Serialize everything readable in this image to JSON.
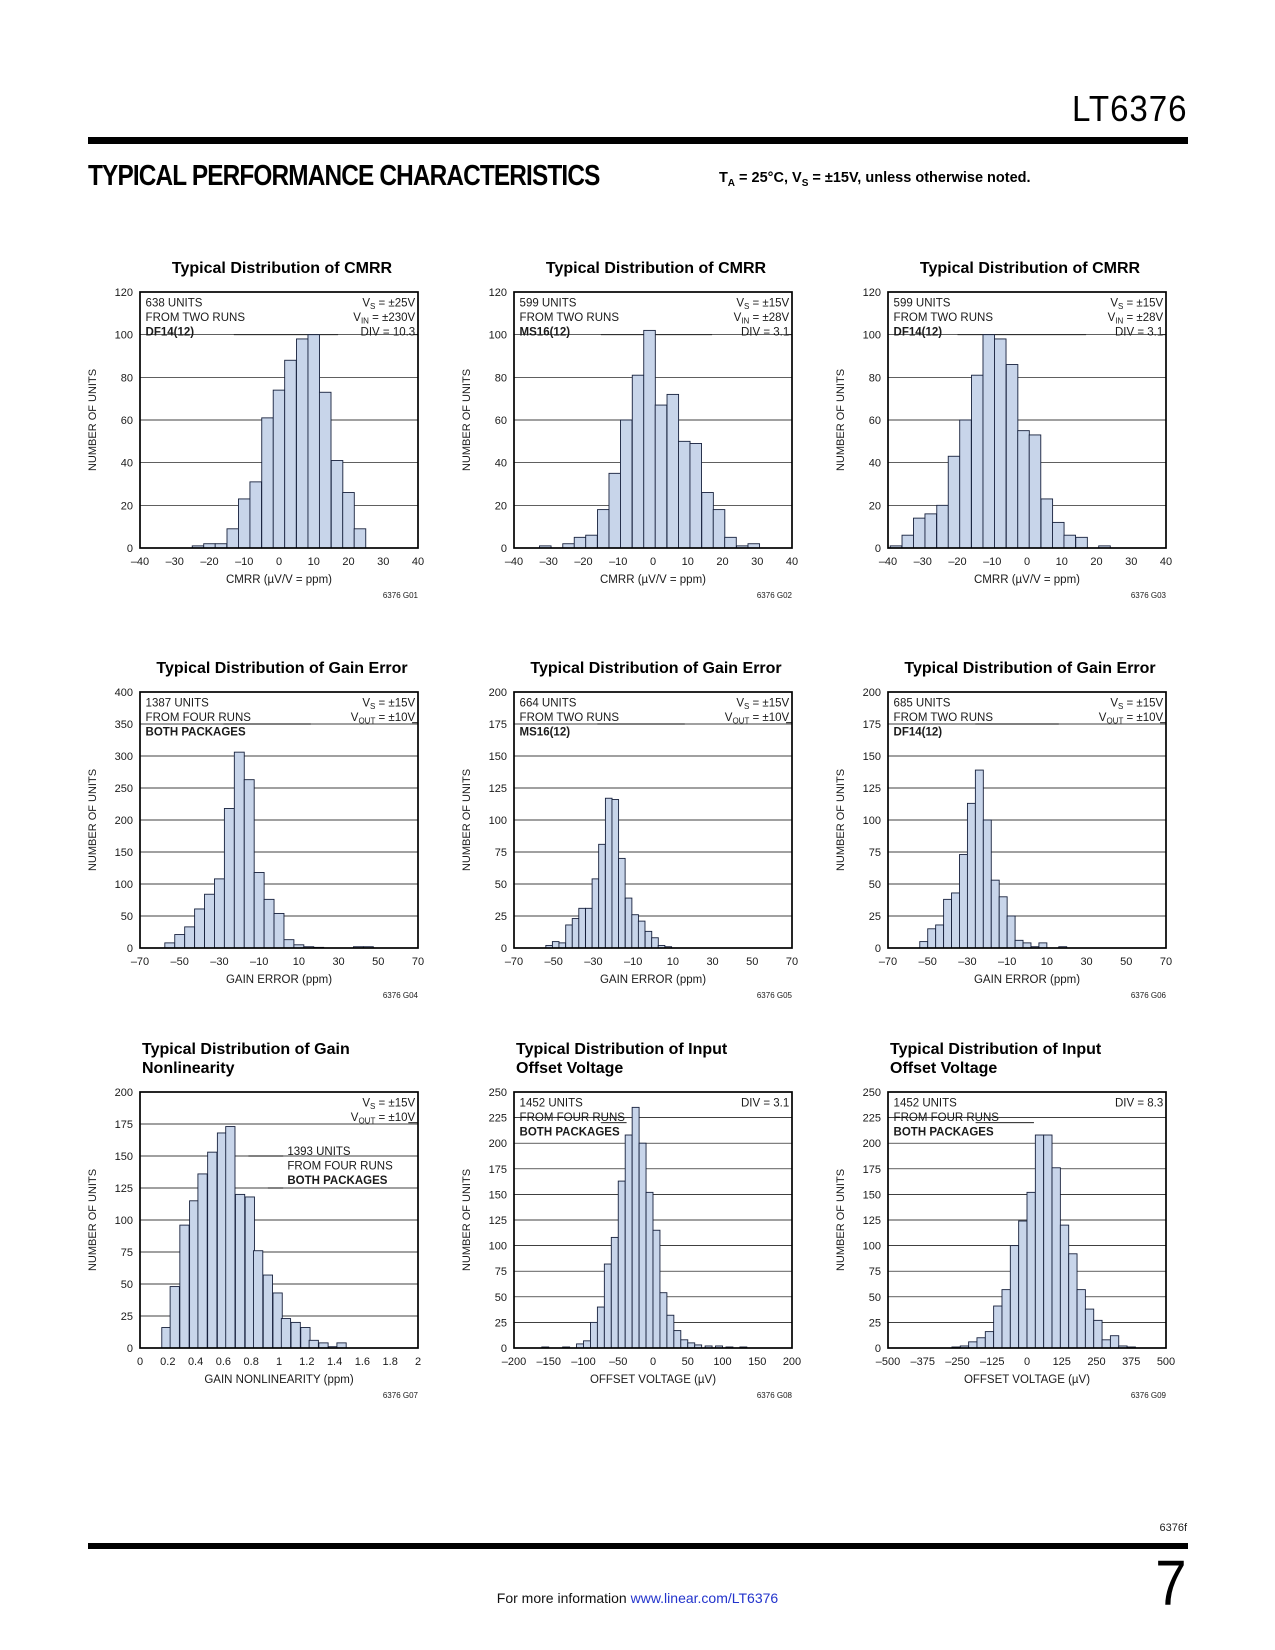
{
  "page": {
    "part_number": "LT6376",
    "section_title": "TYPICAL PERFORMANCE CHARACTERISTICS",
    "conditions_note": "T~A~ = 25°C, V~S~ = ±15V, unless otherwise noted.",
    "footer": {
      "doc_code": "6376f",
      "info_prefix": "For more information ",
      "info_link": "www.linear.com/LT6376",
      "page_number": "7"
    }
  },
  "colors": {
    "bar_fill": "#c8d5ea",
    "bar_stroke": "#17213d",
    "grid": "#000000",
    "frame": "#000000",
    "link": "#2233cc",
    "code_text": "#555555"
  },
  "chart_data": [
    {
      "id": "G01",
      "type": "bar",
      "code": "6376 G01",
      "title": "Typical Distribution of CMRR",
      "title_lines": [
        "Typical Distribution of CMRR"
      ],
      "title_align": "center",
      "xlabel": "CMRR (µV/V = ppm)",
      "ylabel": "NUMBER OF UNITS",
      "xlim": [
        -40,
        40
      ],
      "xticks": [
        -40,
        -30,
        -20,
        -10,
        0,
        10,
        20,
        30,
        40
      ],
      "ylim": [
        0,
        120
      ],
      "ystep": 20,
      "bin_width": 3.33,
      "bars": [
        [
          -23.3,
          1
        ],
        [
          -20,
          2
        ],
        [
          -16.7,
          2
        ],
        [
          -13.3,
          9
        ],
        [
          -10,
          23
        ],
        [
          -6.7,
          31
        ],
        [
          -3.3,
          61
        ],
        [
          0,
          74
        ],
        [
          3.3,
          88
        ],
        [
          6.7,
          98
        ],
        [
          10,
          100
        ],
        [
          13.3,
          73
        ],
        [
          16.7,
          41
        ],
        [
          20,
          26
        ],
        [
          23.3,
          9
        ]
      ],
      "annotations": [
        {
          "anchor": "start",
          "fx": 0.02,
          "fy": 0.01,
          "lines": [
            "638 UNITS",
            "FROM TWO RUNS",
            "**DF14(12)**"
          ]
        },
        {
          "anchor": "end",
          "fx": 0.99,
          "fy": 0.01,
          "lines": [
            "V~S~ = ±25V",
            "V~IN~ = ±230V",
            "DIV = 10.3"
          ]
        }
      ],
      "leaders": [
        {
          "y": 100,
          "x1": -13,
          "x2": 17
        },
        {
          "y": 100,
          "x1": 38.6,
          "x2": 40
        }
      ]
    },
    {
      "id": "G02",
      "type": "bar",
      "code": "6376 G02",
      "title": "Typical Distribution of CMRR",
      "title_lines": [
        "Typical Distribution of CMRR"
      ],
      "title_align": "center",
      "xlabel": "CMRR (µV/V = ppm)",
      "ylabel": "NUMBER OF UNITS",
      "xlim": [
        -40,
        40
      ],
      "xticks": [
        -40,
        -30,
        -20,
        -10,
        0,
        10,
        20,
        30,
        40
      ],
      "ylim": [
        0,
        120
      ],
      "ystep": 20,
      "bin_width": 3.33,
      "bars": [
        [
          -31,
          1
        ],
        [
          -24.3,
          2
        ],
        [
          -21,
          5
        ],
        [
          -17.7,
          6
        ],
        [
          -14.3,
          18
        ],
        [
          -11,
          35
        ],
        [
          -7.7,
          60
        ],
        [
          -4.3,
          81
        ],
        [
          -1,
          102
        ],
        [
          2.3,
          67
        ],
        [
          5.7,
          72
        ],
        [
          9,
          50
        ],
        [
          12.3,
          49
        ],
        [
          15.7,
          26
        ],
        [
          19,
          18
        ],
        [
          22.3,
          5
        ],
        [
          25.7,
          1
        ],
        [
          29,
          2
        ]
      ],
      "annotations": [
        {
          "anchor": "start",
          "fx": 0.02,
          "fy": 0.01,
          "lines": [
            "599 UNITS",
            "FROM TWO RUNS",
            "**MS16(12)**"
          ]
        },
        {
          "anchor": "end",
          "fx": 0.99,
          "fy": 0.01,
          "lines": [
            "V~S~ = ±15V",
            "V~IN~ = ±28V",
            "DIV = 3.1"
          ]
        }
      ],
      "leaders": [
        {
          "y": 100,
          "x1": -15,
          "x2": 17
        },
        {
          "y": 100,
          "x1": 38.6,
          "x2": 40
        }
      ]
    },
    {
      "id": "G03",
      "type": "bar",
      "code": "6376 G03",
      "title": "Typical Distribution of CMRR",
      "title_lines": [
        "Typical Distribution of CMRR"
      ],
      "title_align": "center",
      "xlabel": "CMRR (µV/V = ppm)",
      "ylabel": "NUMBER OF UNITS",
      "xlim": [
        -40,
        40
      ],
      "xticks": [
        -40,
        -30,
        -20,
        -10,
        0,
        10,
        20,
        30,
        40
      ],
      "ylim": [
        0,
        120
      ],
      "ystep": 20,
      "bin_width": 3.33,
      "bars": [
        [
          -37.7,
          1
        ],
        [
          -34.3,
          6
        ],
        [
          -31,
          14
        ],
        [
          -27.7,
          16
        ],
        [
          -24.3,
          20
        ],
        [
          -21,
          43
        ],
        [
          -17.7,
          60
        ],
        [
          -14.3,
          81
        ],
        [
          -11,
          100
        ],
        [
          -7.7,
          98
        ],
        [
          -4.3,
          86
        ],
        [
          -1,
          55
        ],
        [
          2.3,
          53
        ],
        [
          5.7,
          23
        ],
        [
          9,
          12
        ],
        [
          12.3,
          6
        ],
        [
          15.7,
          5
        ],
        [
          22.3,
          1
        ]
      ],
      "annotations": [
        {
          "anchor": "start",
          "fx": 0.02,
          "fy": 0.01,
          "lines": [
            "599 UNITS",
            "FROM TWO RUNS",
            "**DF14(12)**"
          ]
        },
        {
          "anchor": "end",
          "fx": 0.99,
          "fy": 0.01,
          "lines": [
            "V~S~ = ±15V",
            "V~IN~ = ±28V",
            "DIV = 3.1"
          ]
        }
      ],
      "leaders": [
        {
          "y": 100,
          "x1": -20,
          "x2": 17
        },
        {
          "y": 100,
          "x1": 38.6,
          "x2": 40
        }
      ]
    },
    {
      "id": "G04",
      "type": "bar",
      "code": "6376 G04",
      "title": "Typical Distribution of Gain Error",
      "title_lines": [
        "Typical Distribution of Gain Error"
      ],
      "title_align": "center",
      "xlabel": "GAIN ERROR (ppm)",
      "ylabel": "NUMBER OF UNITS",
      "xlim": [
        -70,
        70
      ],
      "xticks": [
        -70,
        -50,
        -30,
        -10,
        10,
        30,
        50,
        70
      ],
      "ylim": [
        0,
        400
      ],
      "ystep": 50,
      "bin_width": 5,
      "bars": [
        [
          -55,
          8
        ],
        [
          -50,
          21
        ],
        [
          -45,
          33
        ],
        [
          -40,
          61
        ],
        [
          -35,
          84
        ],
        [
          -30,
          108
        ],
        [
          -25,
          218
        ],
        [
          -20,
          306
        ],
        [
          -15,
          263
        ],
        [
          -10,
          118
        ],
        [
          -5,
          76
        ],
        [
          0,
          54
        ],
        [
          5,
          13
        ],
        [
          10,
          5
        ],
        [
          15,
          2
        ],
        [
          20,
          1
        ],
        [
          40,
          2
        ],
        [
          45,
          2
        ]
      ],
      "annotations": [
        {
          "anchor": "start",
          "fx": 0.02,
          "fy": 0.01,
          "lines": [
            "1387 UNITS",
            "FROM FOUR RUNS",
            "**BOTH PACKAGES**"
          ]
        },
        {
          "anchor": "end",
          "fx": 0.99,
          "fy": 0.01,
          "lines": [
            "V~S~ = ±15V",
            "V~OUT~ = ±10V"
          ]
        }
      ],
      "leaders": [
        {
          "y": 350,
          "x1": -28,
          "x2": 16
        },
        {
          "y": 352,
          "x1": 67,
          "x2": 70
        }
      ]
    },
    {
      "id": "G05",
      "type": "bar",
      "code": "6376 G05",
      "title": "Typical Distribution of Gain Error",
      "title_lines": [
        "Typical Distribution of Gain Error"
      ],
      "title_align": "center",
      "xlabel": "GAIN ERROR (ppm)",
      "ylabel": "NUMBER OF UNITS",
      "xlim": [
        -70,
        70
      ],
      "xticks": [
        -70,
        -50,
        -30,
        -10,
        10,
        30,
        50,
        70
      ],
      "ylim": [
        0,
        200
      ],
      "ystep": 25,
      "bin_width": 3.33,
      "bars": [
        [
          -52.3,
          2
        ],
        [
          -49,
          5
        ],
        [
          -45.7,
          4
        ],
        [
          -42.3,
          18
        ],
        [
          -39,
          23
        ],
        [
          -35.7,
          31
        ],
        [
          -32.3,
          31
        ],
        [
          -29,
          54
        ],
        [
          -25.7,
          81
        ],
        [
          -22.3,
          117
        ],
        [
          -19,
          116
        ],
        [
          -15.7,
          70
        ],
        [
          -12.3,
          39
        ],
        [
          -9,
          26
        ],
        [
          -5.7,
          21
        ],
        [
          -2.3,
          13
        ],
        [
          1,
          8
        ],
        [
          4.3,
          2
        ],
        [
          7.7,
          1
        ]
      ],
      "annotations": [
        {
          "anchor": "start",
          "fx": 0.02,
          "fy": 0.01,
          "lines": [
            "664 UNITS",
            "FROM TWO RUNS",
            "**MS16(12)**"
          ]
        },
        {
          "anchor": "end",
          "fx": 0.99,
          "fy": 0.01,
          "lines": [
            "V~S~ = ±15V",
            "V~OUT~ = ±10V"
          ]
        }
      ],
      "leaders": [
        {
          "y": 175,
          "x1": -28,
          "x2": 16
        },
        {
          "y": 176,
          "x1": 67,
          "x2": 70
        }
      ]
    },
    {
      "id": "G06",
      "type": "bar",
      "code": "6376 G06",
      "title": "Typical Distribution of Gain Error",
      "title_lines": [
        "Typical Distribution of Gain Error"
      ],
      "title_align": "center",
      "xlabel": "GAIN ERROR (ppm)",
      "ylabel": "NUMBER OF UNITS",
      "xlim": [
        -70,
        70
      ],
      "xticks": [
        -70,
        -50,
        -30,
        -10,
        10,
        30,
        50,
        70
      ],
      "ylim": [
        0,
        200
      ],
      "ystep": 25,
      "bin_width": 4,
      "bars": [
        [
          -52,
          5
        ],
        [
          -48,
          15
        ],
        [
          -44,
          18
        ],
        [
          -40,
          38
        ],
        [
          -36,
          43
        ],
        [
          -32,
          73
        ],
        [
          -28,
          113
        ],
        [
          -24,
          139
        ],
        [
          -20,
          100
        ],
        [
          -16,
          53
        ],
        [
          -12,
          40
        ],
        [
          -8,
          25
        ],
        [
          -4,
          6
        ],
        [
          0,
          4
        ],
        [
          4,
          1
        ],
        [
          8,
          4
        ],
        [
          18,
          1
        ]
      ],
      "annotations": [
        {
          "anchor": "start",
          "fx": 0.02,
          "fy": 0.01,
          "lines": [
            "685 UNITS",
            "FROM TWO RUNS",
            "**DF14(12)**"
          ]
        },
        {
          "anchor": "end",
          "fx": 0.99,
          "fy": 0.01,
          "lines": [
            "V~S~ = ±15V",
            "V~OUT~ = ±10V"
          ]
        }
      ],
      "leaders": [
        {
          "y": 175,
          "x1": -26,
          "x2": 16
        },
        {
          "y": 176,
          "x1": 67,
          "x2": 70
        }
      ]
    },
    {
      "id": "G07",
      "type": "bar",
      "code": "6376 G07",
      "title": "Typical Distribution of Gain Nonlinearity",
      "title_lines": [
        "Typical Distribution of Gain",
        "Nonlinearity"
      ],
      "title_align": "left",
      "xlabel": "GAIN NONLINEARITY (ppm)",
      "ylabel": "NUMBER OF UNITS",
      "xlim": [
        0,
        2
      ],
      "xticks": [
        0,
        0.2,
        0.4,
        0.6,
        0.8,
        1,
        1.2,
        1.4,
        1.6,
        1.8,
        2
      ],
      "ylim": [
        0,
        200
      ],
      "ystep": 25,
      "bin_width": 0.0667,
      "bars": [
        [
          0.19,
          16
        ],
        [
          0.25,
          48
        ],
        [
          0.32,
          96
        ],
        [
          0.39,
          115
        ],
        [
          0.45,
          136
        ],
        [
          0.52,
          153
        ],
        [
          0.59,
          168
        ],
        [
          0.65,
          173
        ],
        [
          0.72,
          120
        ],
        [
          0.79,
          118
        ],
        [
          0.85,
          76
        ],
        [
          0.92,
          57
        ],
        [
          0.99,
          43
        ],
        [
          1.05,
          23
        ],
        [
          1.12,
          20
        ],
        [
          1.19,
          16
        ],
        [
          1.25,
          6
        ],
        [
          1.32,
          4
        ],
        [
          1.39,
          1
        ],
        [
          1.45,
          4
        ]
      ],
      "annotations": [
        {
          "anchor": "end",
          "fx": 0.99,
          "fy": 0.01,
          "lines": [
            "V~S~ = ±15V",
            "V~OUT~ = ±10V"
          ]
        },
        {
          "anchor": "start",
          "fx": 0.53,
          "fy": 0.2,
          "lines": [
            "1393 UNITS",
            "FROM FOUR RUNS",
            "**BOTH PACKAGES**"
          ]
        }
      ],
      "leaders": [
        {
          "y": 150,
          "x1": 0.78,
          "x2": 1.03
        },
        {
          "y": 125,
          "x1": 0.92,
          "x2": 1.03
        },
        {
          "y": 176,
          "x1": 1.93,
          "x2": 2
        }
      ]
    },
    {
      "id": "G08",
      "type": "bar",
      "code": "6376 G08",
      "title": "Typical Distribution of Input Offset Voltage",
      "title_lines": [
        "Typical Distribution of Input",
        "Offset Voltage"
      ],
      "title_align": "left",
      "xlabel": "OFFSET VOLTAGE (µV)",
      "ylabel": "NUMBER OF UNITS",
      "xlim": [
        -200,
        200
      ],
      "xticks": [
        -200,
        -150,
        -100,
        -50,
        0,
        50,
        100,
        150,
        200
      ],
      "ylim": [
        0,
        250
      ],
      "ystep": 25,
      "bin_width": 10,
      "bars": [
        [
          -155,
          1
        ],
        [
          -125,
          1
        ],
        [
          -105,
          4
        ],
        [
          -95,
          7
        ],
        [
          -85,
          25
        ],
        [
          -75,
          40
        ],
        [
          -65,
          82
        ],
        [
          -55,
          108
        ],
        [
          -45,
          163
        ],
        [
          -35,
          208
        ],
        [
          -25,
          235
        ],
        [
          -15,
          200
        ],
        [
          -5,
          152
        ],
        [
          5,
          115
        ],
        [
          15,
          54
        ],
        [
          25,
          32
        ],
        [
          35,
          17
        ],
        [
          45,
          8
        ],
        [
          55,
          5
        ],
        [
          65,
          3
        ],
        [
          80,
          2
        ],
        [
          95,
          2
        ],
        [
          110,
          1
        ],
        [
          130,
          1
        ]
      ],
      "annotations": [
        {
          "anchor": "start",
          "fx": 0.02,
          "fy": 0.01,
          "lines": [
            "1452 UNITS",
            "FROM FOUR RUNS",
            "**BOTH PACKAGES**"
          ]
        },
        {
          "anchor": "end",
          "fx": 0.99,
          "fy": 0.01,
          "lines": [
            "DIV = 3.1"
          ]
        }
      ],
      "leaders": [
        {
          "y": 220,
          "x1": -75,
          "x2": -38
        }
      ]
    },
    {
      "id": "G09",
      "type": "bar",
      "code": "6376 G09",
      "title": "Typical Distribution of Input Offset Voltage",
      "title_lines": [
        "Typical Distribution of Input",
        "Offset Voltage"
      ],
      "title_align": "left",
      "xlabel": "OFFSET VOLTAGE (µV)",
      "ylabel": "NUMBER OF UNITS",
      "xlim": [
        -500,
        500
      ],
      "xticks": [
        -500,
        -375,
        -250,
        -125,
        0,
        125,
        250,
        375,
        500
      ],
      "ylim": [
        0,
        250
      ],
      "ystep": 25,
      "bin_width": 30,
      "bars": [
        [
          -255,
          1
        ],
        [
          -225,
          2
        ],
        [
          -195,
          6
        ],
        [
          -165,
          10
        ],
        [
          -135,
          16
        ],
        [
          -105,
          41
        ],
        [
          -75,
          57
        ],
        [
          -45,
          100
        ],
        [
          -15,
          124
        ],
        [
          15,
          152
        ],
        [
          45,
          208
        ],
        [
          75,
          208
        ],
        [
          105,
          176
        ],
        [
          135,
          120
        ],
        [
          165,
          92
        ],
        [
          195,
          57
        ],
        [
          225,
          38
        ],
        [
          255,
          27
        ],
        [
          285,
          8
        ],
        [
          315,
          12
        ],
        [
          345,
          2
        ],
        [
          375,
          1
        ]
      ],
      "annotations": [
        {
          "anchor": "start",
          "fx": 0.02,
          "fy": 0.01,
          "lines": [
            "1452 UNITS",
            "FROM FOUR RUNS",
            "**BOTH PACKAGES**"
          ]
        },
        {
          "anchor": "end",
          "fx": 0.99,
          "fy": 0.01,
          "lines": [
            "DIV = 8.3"
          ]
        }
      ],
      "leaders": [
        {
          "y": 220,
          "x1": -185,
          "x2": 25
        }
      ]
    }
  ]
}
